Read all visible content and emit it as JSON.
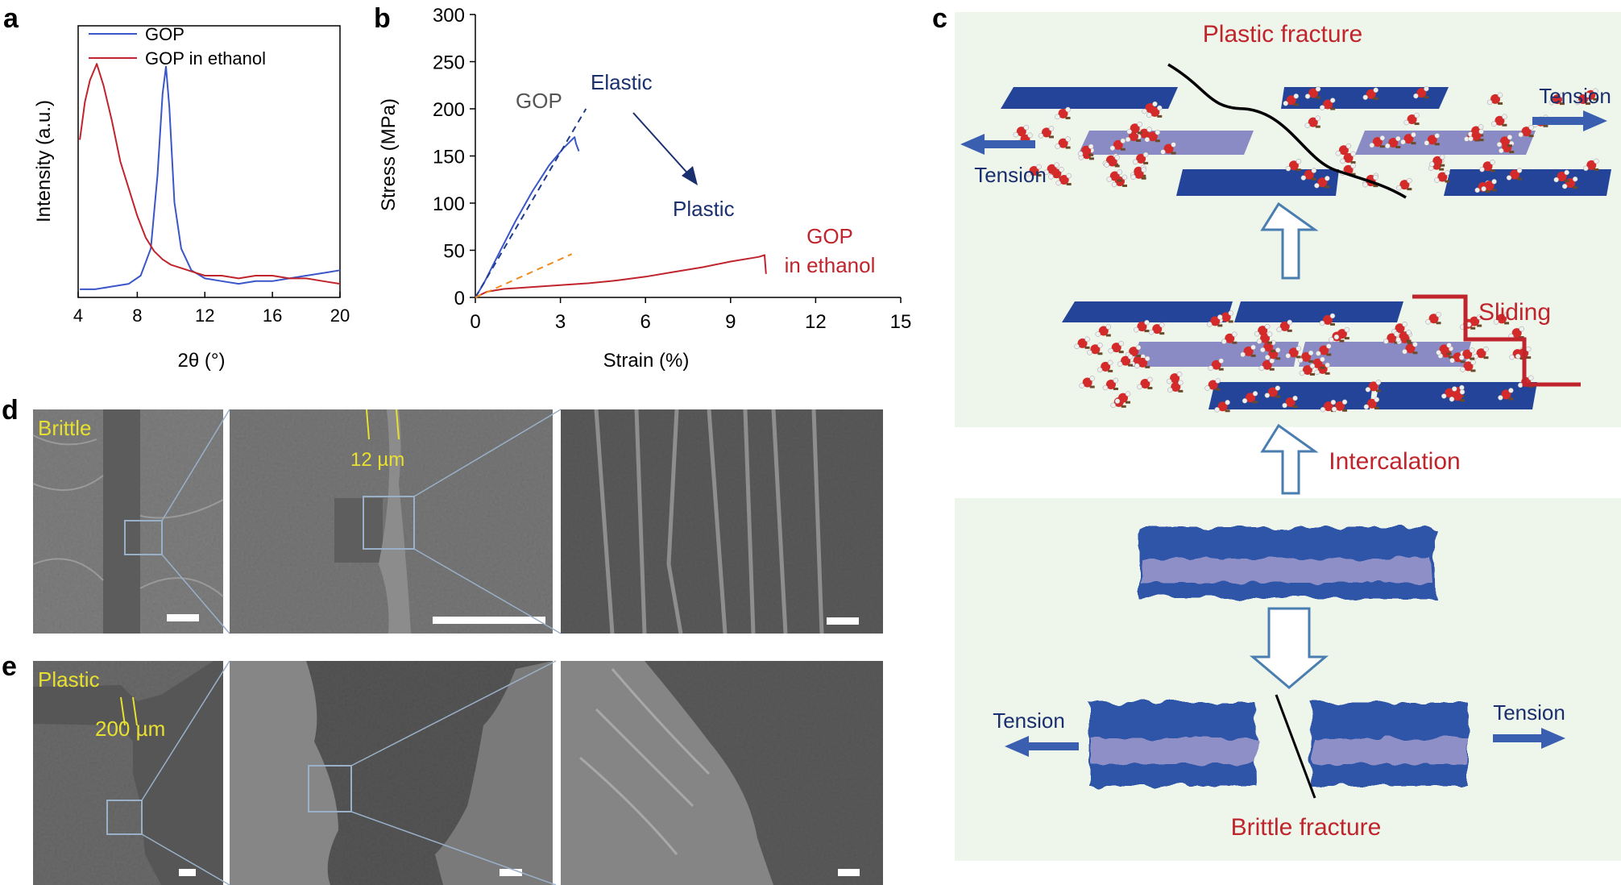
{
  "panels": {
    "a": {
      "label": "a"
    },
    "b": {
      "label": "b"
    },
    "c": {
      "label": "c",
      "plastic_fracture": "Plastic fracture",
      "tension": "Tension",
      "sliding": "Sliding",
      "intercalation": "Intercalation",
      "brittle_fracture": "Brittle fracture"
    },
    "d": {
      "label": "d",
      "tag": "Brittle",
      "measure": "12 µm"
    },
    "e": {
      "label": "e",
      "tag": "Plastic",
      "measure": "200 µm"
    }
  },
  "colors": {
    "gop": "#3a56c8",
    "gop_ethanol": "#c0242c",
    "dashed_gop": "#1f3c8c",
    "dashed_ethanol": "#f08c1e",
    "navy_text": "#1a2f6e",
    "red_text": "#c0242c",
    "sheet_blue": "#24449a",
    "sheet_light": "#8a8ac4",
    "panel_bg": "#eef5ea",
    "arrow_outline": "#4a7eb0",
    "sem_yellow": "#e8e030"
  },
  "chart_data": [
    {
      "type": "line",
      "panel": "a",
      "xlabel": "2θ (°)",
      "ylabel": "Intensity (a.u.)",
      "xlim": [
        4.5,
        20
      ],
      "x_ticks": [
        4,
        8,
        12,
        16,
        20
      ],
      "legend": "top-left",
      "grid": false,
      "series": [
        {
          "name": "GOP",
          "color": "#3a56c8",
          "x": [
            4.6,
            5.5,
            6.5,
            7.5,
            8.2,
            8.8,
            9.2,
            9.5,
            9.7,
            9.9,
            10.2,
            10.6,
            11.2,
            12.0,
            13.0,
            14.0,
            15.0,
            16.0,
            17.0,
            18.0,
            19.0,
            20.0
          ],
          "y": [
            0.03,
            0.03,
            0.04,
            0.05,
            0.08,
            0.18,
            0.45,
            0.75,
            0.85,
            0.7,
            0.35,
            0.18,
            0.1,
            0.07,
            0.06,
            0.05,
            0.06,
            0.06,
            0.07,
            0.08,
            0.09,
            0.1
          ]
        },
        {
          "name": "GOP in ethanol",
          "color": "#c0242c",
          "x": [
            4.6,
            4.9,
            5.2,
            5.6,
            6.0,
            6.5,
            7.0,
            7.5,
            8.0,
            8.5,
            9.0,
            9.5,
            10.0,
            10.5,
            11.0,
            11.5,
            12.0,
            13.0,
            14.0,
            15.0,
            16.0,
            17.0,
            18.0,
            19.0,
            20.0
          ],
          "y": [
            0.58,
            0.72,
            0.8,
            0.86,
            0.78,
            0.65,
            0.5,
            0.4,
            0.3,
            0.22,
            0.17,
            0.14,
            0.12,
            0.11,
            0.1,
            0.09,
            0.08,
            0.08,
            0.07,
            0.08,
            0.08,
            0.07,
            0.07,
            0.06,
            0.05
          ]
        }
      ]
    },
    {
      "type": "line",
      "panel": "b",
      "xlabel": "Strain (%)",
      "ylabel": "Stress (MPa)",
      "xlim": [
        0,
        15
      ],
      "ylim": [
        0,
        300
      ],
      "x_ticks": [
        0,
        3,
        6,
        9,
        12,
        15
      ],
      "y_ticks": [
        0,
        50,
        100,
        150,
        200,
        250,
        300
      ],
      "grid": false,
      "annotations": [
        "GOP",
        "Elastic",
        "Plastic",
        "GOP",
        "in ethanol"
      ],
      "series": [
        {
          "color": "#3a56c8",
          "x": [
            0,
            0.3,
            0.8,
            1.4,
            2.0,
            2.6,
            3.1,
            3.5,
            3.55,
            3.65
          ],
          "y": [
            0,
            15,
            45,
            80,
            112,
            140,
            158,
            170,
            163,
            155
          ]
        },
        {
          "color": "#c0242c",
          "x": [
            0,
            0.4,
            1.0,
            2.0,
            3.0,
            4.0,
            5.0,
            6.0,
            7.0,
            8.0,
            9.0,
            10.0,
            10.2,
            10.25
          ],
          "y": [
            0,
            6,
            9,
            11,
            13,
            15,
            18,
            22,
            27,
            32,
            38,
            43,
            45,
            25
          ]
        },
        {
          "style": "dashed",
          "color": "#1f3c8c",
          "x": [
            0,
            3.9
          ],
          "y": [
            0,
            200
          ]
        },
        {
          "style": "dashed",
          "color": "#f08c1e",
          "x": [
            0,
            3.4
          ],
          "y": [
            0,
            46
          ]
        }
      ]
    }
  ]
}
